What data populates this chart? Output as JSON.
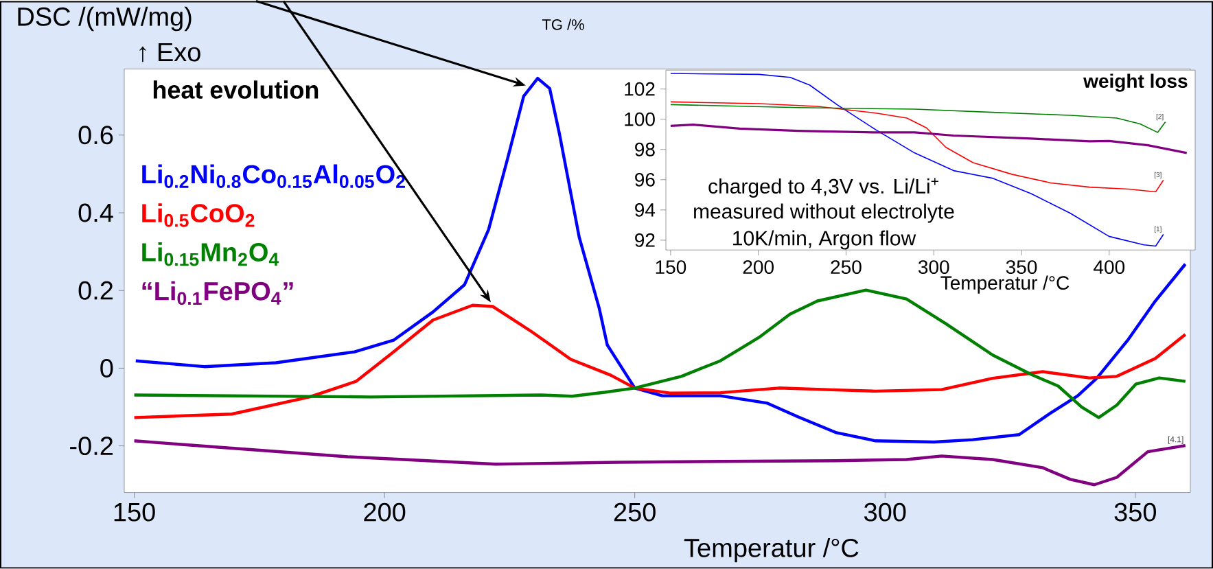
{
  "chart_data": [
    {
      "type": "line",
      "xlabel": "Temperatur /°C",
      "ylabel": "DSC /(mW/mg)",
      "legend": "top left",
      "annotations": [
        "↑ Exo",
        "heat evolution",
        {
          "text": "[4.1]",
          "x": 360,
          "y": -0.199
        }
      ],
      "xlim": [
        148,
        361
      ],
      "ylim": [
        -0.32,
        0.77
      ],
      "xticks": [
        150,
        200,
        250,
        300,
        350
      ],
      "yticks": [
        -0.2,
        0,
        0.2,
        0.4,
        0.6
      ],
      "series": [
        {
          "name": "Li$_{0.2}$Ni$_{0.8}$Co$_{0.15}$Al$_{0.05}$O$_{2}$",
          "color": "#0000ff",
          "x": [
            150.3,
            164,
            178.3,
            194,
            201.8,
            209.7,
            216,
            220.8,
            224.6,
            227.8,
            230.6,
            233,
            235,
            238.9,
            242.9,
            244.5,
            250,
            255.5,
            267.1,
            276.5,
            282.6,
            290.3,
            298.1,
            309.8,
            317.5,
            326.8,
            333,
            338.5,
            342.3,
            348.6,
            354,
            360
          ],
          "values": [
            0.019,
            0.004,
            0.014,
            0.042,
            0.072,
            0.145,
            0.215,
            0.357,
            0.54,
            0.7,
            0.746,
            0.72,
            0.6,
            0.337,
            0.154,
            0.06,
            -0.051,
            -0.071,
            -0.071,
            -0.09,
            -0.125,
            -0.166,
            -0.187,
            -0.19,
            -0.184,
            -0.171,
            -0.116,
            -0.071,
            -0.026,
            0.074,
            0.173,
            0.268
          ]
        },
        {
          "name": "Li$_{0.5}$CoO$_{2}$",
          "color": "#ff0000",
          "x": [
            150,
            169.5,
            185,
            194.3,
            201.8,
            209.7,
            217.6,
            221.6,
            229.4,
            237.2,
            245.2,
            250,
            257,
            267.1,
            278.8,
            290.3,
            298.1,
            311.3,
            321.5,
            331.5,
            340.8,
            346.3,
            354,
            360
          ],
          "values": [
            -0.127,
            -0.118,
            -0.074,
            -0.034,
            0.042,
            0.124,
            0.162,
            0.159,
            0.094,
            0.023,
            -0.018,
            -0.051,
            -0.064,
            -0.063,
            -0.051,
            -0.056,
            -0.059,
            -0.055,
            -0.026,
            -0.009,
            -0.025,
            -0.021,
            0.025,
            0.087
          ]
        },
        {
          "name": "Li$_{0.15}$Mn$_{2}$O$_{4}$",
          "color": "#008000",
          "x": [
            150,
            197.3,
            231.3,
            237.5,
            244,
            250,
            259.3,
            267.1,
            274.8,
            281,
            286.5,
            296.2,
            304.3,
            312.1,
            321.5,
            329.2,
            334.6,
            339.3,
            342.7,
            346.3,
            350.1,
            354.8,
            360
          ],
          "values": [
            -0.069,
            -0.074,
            -0.069,
            -0.072,
            -0.062,
            -0.051,
            -0.021,
            0.019,
            0.079,
            0.139,
            0.173,
            0.201,
            0.178,
            0.115,
            0.034,
            -0.016,
            -0.046,
            -0.1,
            -0.127,
            -0.095,
            -0.041,
            -0.025,
            -0.034
          ]
        },
        {
          "name": "“Li$_{0.1}$FePO$_{4}$”",
          "color": "#800080",
          "x": [
            150,
            169.5,
            192.7,
            222.2,
            246.8,
            267.1,
            290.3,
            304.3,
            311.3,
            321.5,
            331.5,
            337,
            341.8,
            346.3,
            352.5,
            360
          ],
          "values": [
            -0.187,
            -0.206,
            -0.228,
            -0.247,
            -0.242,
            -0.24,
            -0.238,
            -0.235,
            -0.226,
            -0.235,
            -0.256,
            -0.286,
            -0.3,
            -0.281,
            -0.215,
            -0.199
          ]
        }
      ]
    },
    {
      "type": "line",
      "xlabel": "Temperatur /°C",
      "ylabel": "TG /%",
      "annotations": [
        "weight loss",
        "charged to 4,3V vs. Li/Li$^{+}$",
        "measured without electrolyte",
        "10K/min, Argon flow",
        {
          "text": "[1]",
          "x": 430.9,
          "y": 92.38
        },
        {
          "text": "[2]",
          "x": 432,
          "y": 99.82
        },
        {
          "text": "[3]",
          "x": 430.9,
          "y": 95.97
        }
      ],
      "xlim": [
        147.3,
        449
      ],
      "ylim": [
        91.35,
        103.25
      ],
      "xticks": [
        150,
        200,
        250,
        300,
        350,
        400
      ],
      "yticks": [
        92,
        94,
        96,
        98,
        100,
        102
      ],
      "series": [
        {
          "color": "#0000ff",
          "x": [
            150,
            200.5,
            218.2,
            229.3,
            244.8,
            267,
            289.1,
            311.3,
            333.4,
            355.6,
            377.7,
            399.9,
            419.8,
            426.5,
            430.9
          ],
          "values": [
            103.03,
            102.97,
            102.77,
            102.26,
            100.97,
            99.3,
            97.77,
            96.6,
            96.1,
            95.07,
            93.79,
            92.25,
            91.69,
            91.61,
            92.38
          ]
        },
        {
          "color": "#ff0000",
          "x": [
            150,
            200.5,
            233.7,
            267,
            284.7,
            295.8,
            306.8,
            322.4,
            344.5,
            366.7,
            388.8,
            411,
            426.5,
            430.9
          ],
          "values": [
            101.15,
            101.03,
            100.85,
            100.41,
            100.08,
            99.43,
            98.15,
            97.13,
            96.36,
            95.79,
            95.51,
            95.38,
            95.2,
            95.97
          ]
        },
        {
          "color": "#008000",
          "x": [
            150,
            222.7,
            289.1,
            333.4,
            377.7,
            404.3,
            417.6,
            427.6,
            432
          ],
          "values": [
            100.97,
            100.77,
            100.67,
            100.46,
            100.26,
            100.08,
            99.69,
            99.13,
            99.82
          ]
        },
        {
          "color": "#800080",
          "x": [
            150,
            162.8,
            189.4,
            222.7,
            267,
            289.1,
            311.3,
            355.6,
            388.8,
            399.9,
            422.1,
            444.2
          ],
          "values": [
            99.56,
            99.64,
            99.38,
            99.23,
            99.13,
            99.13,
            98.92,
            98.72,
            98.54,
            98.56,
            98.28,
            97.77
          ]
        }
      ]
    }
  ]
}
